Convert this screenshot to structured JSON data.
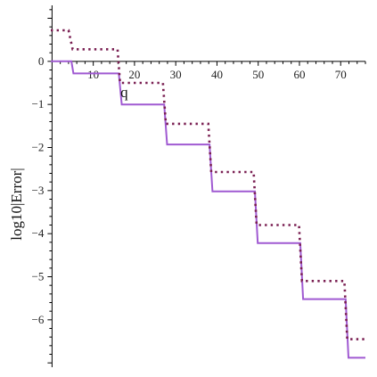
{
  "chart_data": {
    "type": "line",
    "title": "",
    "xlabel": "q",
    "ylabel": "log10|Error|",
    "xlim": [
      -0.3,
      76
    ],
    "ylim": [
      -7.1,
      1.3
    ],
    "x_ticks": [
      10,
      20,
      30,
      40,
      50,
      60,
      70
    ],
    "y_ticks": [
      0,
      -1,
      -2,
      -3,
      -4,
      -5,
      -6
    ],
    "x_tick_labels": [
      "10",
      "20",
      "30",
      "40",
      "50",
      "60",
      "70"
    ],
    "y_tick_labels": [
      "0",
      "−1",
      "−2",
      "−3",
      "−4",
      "−5",
      "−6"
    ],
    "grid": false,
    "legend": "none",
    "series": [
      {
        "style": "solid",
        "color": "#a05ad2",
        "x": [
          -0.3,
          4.7,
          5.2,
          16.2,
          16.9,
          27.2,
          27.9,
          38.2,
          38.9,
          49.2,
          49.9,
          60.2,
          60.9,
          71.2,
          71.9,
          76
        ],
        "y": [
          0,
          0,
          -0.28,
          -0.28,
          -1.0,
          -1.0,
          -1.93,
          -1.93,
          -3.02,
          -3.02,
          -4.22,
          -4.22,
          -5.52,
          -5.52,
          -6.88,
          -6.88
        ]
      },
      {
        "style": "dotted",
        "color": "#7a1f52",
        "x": [
          -0.3,
          4.0,
          5.0,
          15.9,
          16.5,
          26.9,
          27.6,
          37.9,
          38.6,
          48.9,
          49.6,
          59.9,
          60.6,
          70.9,
          71.6,
          76
        ],
        "y": [
          0.72,
          0.72,
          0.28,
          0.28,
          -0.5,
          -0.5,
          -1.45,
          -1.45,
          -2.57,
          -2.57,
          -3.8,
          -3.8,
          -5.1,
          -5.1,
          -6.45,
          -6.45
        ]
      }
    ]
  }
}
